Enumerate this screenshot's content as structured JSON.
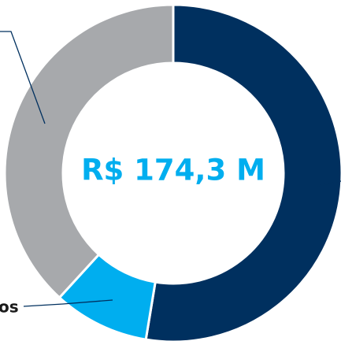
{
  "chart_data": {
    "type": "donut",
    "center_label": "R$ 174,3 M",
    "categories": [
      null,
      "os",
      null
    ],
    "values": [
      52.6,
      9.2,
      38.2
    ],
    "colors": [
      "#00305f",
      "#00aeef",
      "#a7a9ac"
    ],
    "center_color": "#00aeef"
  }
}
